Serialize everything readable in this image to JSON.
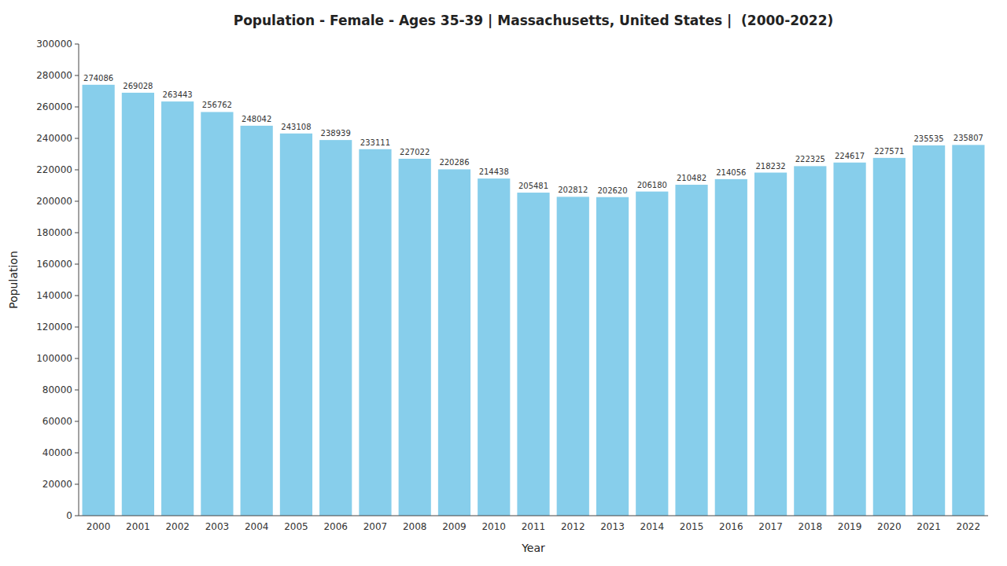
{
  "chart_data": {
    "type": "bar",
    "title": "Population - Female - Ages 35-39 | Massachusetts, United States |  (2000-2022)",
    "xlabel": "Year",
    "ylabel": "Population",
    "categories": [
      "2000",
      "2001",
      "2002",
      "2003",
      "2004",
      "2005",
      "2006",
      "2007",
      "2008",
      "2009",
      "2010",
      "2011",
      "2012",
      "2013",
      "2014",
      "2015",
      "2016",
      "2017",
      "2018",
      "2019",
      "2020",
      "2021",
      "2022"
    ],
    "values": [
      274086,
      269028,
      263443,
      256762,
      248042,
      243108,
      238939,
      233111,
      227022,
      220286,
      214438,
      205481,
      202812,
      202620,
      206180,
      210482,
      214056,
      218232,
      222325,
      224617,
      227571,
      235535,
      235807
    ],
    "color": "#87ceeb",
    "ylim": [
      0,
      300000
    ],
    "yticks": [
      0,
      20000,
      40000,
      60000,
      80000,
      100000,
      120000,
      140000,
      160000,
      180000,
      200000,
      220000,
      240000,
      260000,
      280000,
      300000
    ],
    "grid": false,
    "data_labels": true
  }
}
